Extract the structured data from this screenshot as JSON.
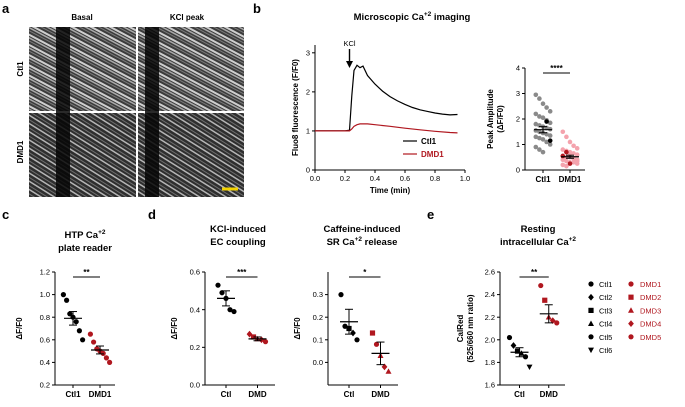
{
  "colors": {
    "ctl": "#000000",
    "dmd": "#b0171f",
    "grey": "#8a8a8a",
    "pink": "#f4a3ad",
    "scalebar": "#f2d200"
  },
  "panel_a": {
    "letter": "a",
    "col_basal": "Basal",
    "col_kcl": "KCl peak",
    "row_ctl": "Ctl1",
    "row_dmd": "DMD1"
  },
  "panel_b": {
    "letter": "b",
    "title": "Microscopic Ca",
    "title_sup": "+2",
    "title_end": " imaging"
  },
  "panel_c": {
    "letter": "c",
    "title1": "HTP Ca",
    "title1_sup": "+2",
    "title2": "plate reader"
  },
  "panel_d": {
    "letter": "d",
    "left_title1": "KCl-induced",
    "left_title2": "EC coupling",
    "right_title1": "Caffeine-induced",
    "right_title2a": "SR Ca",
    "right_title2_sup": "+2",
    "right_title2b": " release"
  },
  "panel_e": {
    "letter": "e",
    "title1": "Resting",
    "title2a": "intracellular Ca",
    "title2_sup": "+2"
  },
  "legend": {
    "ctl": [
      "Ctl1",
      "Ctl2",
      "Ctl3",
      "Ctl4",
      "Ctl5",
      "Ctl6"
    ],
    "dmd": [
      "DMD1",
      "DMD2",
      "DMD3",
      "DMD4",
      "DMD5"
    ]
  },
  "chart_data": [
    {
      "id": "trace",
      "type": "line",
      "xlabel": "Time (min)",
      "ylabel": "Fluo8 fluorescence (F/F0)",
      "xlim": [
        0,
        1
      ],
      "ylim": [
        0,
        3.2
      ],
      "xticks": [
        "0.0",
        "0.2",
        "0.4",
        "0.6",
        "0.8",
        "1.0"
      ],
      "yticks": [
        "0",
        "1",
        "2",
        "3"
      ],
      "annotation": "KCl",
      "annotation_x": 0.23,
      "series": [
        {
          "name": "Ctl1",
          "x": [
            0,
            0.05,
            0.1,
            0.15,
            0.2,
            0.23,
            0.245,
            0.26,
            0.28,
            0.3,
            0.32,
            0.35,
            0.4,
            0.45,
            0.5,
            0.55,
            0.6,
            0.65,
            0.7,
            0.75,
            0.8,
            0.85,
            0.9,
            0.95
          ],
          "y": [
            1.0,
            1.0,
            1.0,
            1.0,
            1.0,
            1.02,
            1.9,
            2.55,
            2.68,
            2.62,
            2.66,
            2.42,
            2.2,
            2.02,
            1.88,
            1.77,
            1.68,
            1.6,
            1.54,
            1.5,
            1.46,
            1.43,
            1.41,
            1.42
          ]
        },
        {
          "name": "DMD1",
          "x": [
            0,
            0.05,
            0.1,
            0.15,
            0.2,
            0.23,
            0.245,
            0.26,
            0.28,
            0.3,
            0.35,
            0.4,
            0.5,
            0.6,
            0.7,
            0.8,
            0.9,
            0.95
          ],
          "y": [
            1.0,
            1.0,
            1.0,
            1.0,
            1.0,
            1.0,
            1.05,
            1.12,
            1.16,
            1.18,
            1.18,
            1.16,
            1.12,
            1.07,
            1.03,
            0.99,
            0.96,
            0.95
          ]
        }
      ]
    },
    {
      "id": "peak",
      "type": "scatter",
      "ylabel": "Peak Amplitude",
      "ylabel2": "(ΔF/F0)",
      "ylim": [
        0,
        4
      ],
      "yticks": [
        "0",
        "1",
        "2",
        "3",
        "4"
      ],
      "categories": [
        "Ctl1",
        "DMD1"
      ],
      "significance": "****",
      "mean": [
        1.58,
        0.52
      ],
      "sem": [
        0.12,
        0.06
      ],
      "points": [
        [
          2.95,
          2.8,
          2.6,
          2.45,
          2.3,
          2.2,
          2.1,
          2.05,
          1.95,
          1.85,
          1.8,
          1.75,
          1.7,
          1.65,
          1.6,
          1.55,
          1.5,
          1.45,
          1.4,
          1.35,
          1.3,
          1.25,
          1.2,
          1.1,
          1.0,
          0.9,
          0.8,
          0.7,
          1.9,
          1.15
        ],
        [
          1.5,
          1.3,
          1.1,
          0.95,
          0.85,
          0.8,
          0.75,
          0.7,
          0.65,
          0.6,
          0.55,
          0.5,
          0.5,
          0.45,
          0.4,
          0.4,
          0.35,
          0.3,
          0.3,
          0.25,
          0.2,
          0.15,
          0.6,
          0.45,
          0.35,
          0.55,
          0.7,
          0.25
        ]
      ]
    },
    {
      "id": "htp",
      "type": "scatter",
      "ylabel": "ΔF/F0",
      "ylim": [
        0.2,
        1.2
      ],
      "yticks": [
        "0.2",
        "0.4",
        "0.6",
        "0.8",
        "1.0",
        "1.2"
      ],
      "categories": [
        "Ctl1",
        "DMD1"
      ],
      "significance": "**",
      "mean": [
        0.79,
        0.51
      ],
      "sem": [
        0.06,
        0.035
      ],
      "points": [
        [
          1.0,
          0.95,
          0.83,
          0.8,
          0.76,
          0.68,
          0.6
        ],
        [
          0.65,
          0.58,
          0.52,
          0.5,
          0.48,
          0.44,
          0.4
        ]
      ]
    },
    {
      "id": "kcl",
      "type": "scatter",
      "ylabel": "ΔF/F0",
      "ylim": [
        0,
        0.6
      ],
      "yticks": [
        "0.0",
        "0.2",
        "0.4",
        "0.6"
      ],
      "categories": [
        "Ctl",
        "DMD"
      ],
      "significance": "***",
      "mean": [
        0.46,
        0.245
      ],
      "sem": [
        0.04,
        0.01
      ],
      "points": [
        [
          0.53,
          0.49,
          0.46,
          0.4,
          0.39
        ],
        [
          0.27,
          0.255,
          0.245,
          0.24,
          0.23
        ]
      ]
    },
    {
      "id": "caffeine",
      "type": "scatter",
      "ylabel": "ΔF/F0",
      "ylim": [
        -0.1,
        0.4
      ],
      "yticks": [
        "0.0",
        "0.1",
        "0.2",
        "0.3"
      ],
      "categories": [
        "Ctl",
        "DMD"
      ],
      "significance": "*",
      "mean": [
        0.18,
        0.04
      ],
      "sem": [
        0.055,
        0.05
      ],
      "points": [
        [
          0.3,
          0.16,
          0.15,
          0.13,
          0.1
        ],
        [
          0.13,
          0.08,
          0.03,
          -0.02,
          -0.04
        ]
      ]
    },
    {
      "id": "resting",
      "type": "scatter",
      "ylabel": "CalRed",
      "ylabel2": "(525/660 nm ratio)",
      "ylim": [
        1.6,
        2.6
      ],
      "yticks": [
        "1.6",
        "1.8",
        "2.0",
        "2.2",
        "2.4",
        "2.6"
      ],
      "categories": [
        "Ctl",
        "DMD"
      ],
      "significance": "**",
      "mean": [
        1.89,
        2.23
      ],
      "sem": [
        0.04,
        0.08
      ],
      "points": [
        [
          2.02,
          1.95,
          1.9,
          1.88,
          1.85,
          1.76
        ],
        [
          2.48,
          2.35,
          2.2,
          2.17,
          2.15
        ]
      ]
    }
  ]
}
